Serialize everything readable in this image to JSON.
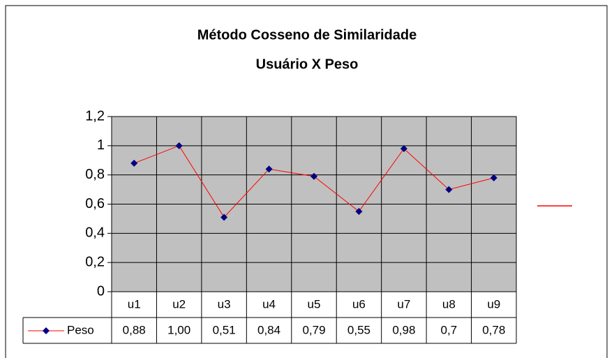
{
  "chart_data": {
    "type": "line",
    "title": "Método Cosseno de Similaridade",
    "subtitle": "Usuário X Peso",
    "categories": [
      "u1",
      "u2",
      "u3",
      "u4",
      "u5",
      "u6",
      "u7",
      "u8",
      "u9"
    ],
    "series": [
      {
        "name": "Peso",
        "color": "#ff0000",
        "marker_color": "#000080",
        "values": [
          0.88,
          1.0,
          0.51,
          0.84,
          0.79,
          0.55,
          0.98,
          0.7,
          0.78
        ],
        "value_labels": [
          "0,88",
          "1,00",
          "0,51",
          "0,84",
          "0,79",
          "0,55",
          "0,98",
          "0,7",
          "0,78"
        ]
      }
    ],
    "ylim": [
      0,
      1.2
    ],
    "yticks": [
      0,
      {
        "value": 0.2,
        "label": "0,2"
      },
      {
        "value": 0.4,
        "label": "0,4"
      },
      {
        "value": 0.6,
        "label": "0,6"
      },
      {
        "value": 0.8,
        "label": "0,8"
      },
      1,
      {
        "value": 1.2,
        "label": "1,2"
      }
    ],
    "grid": true,
    "plot_background": "#c0c0c0",
    "data_table": true
  }
}
